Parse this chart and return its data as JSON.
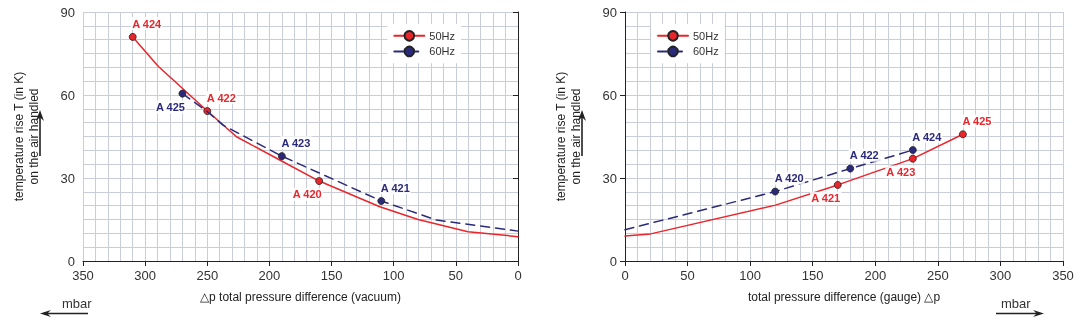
{
  "chart_data": [
    {
      "type": "line",
      "xlabel": "△p total pressure difference (vacuum)",
      "ylabel": "temperature rise T (in K)\non the air handled",
      "annotations": [
        "mbar"
      ],
      "xlim": [
        350,
        0
      ],
      "xticks": [
        350,
        300,
        250,
        200,
        150,
        100,
        50,
        0
      ],
      "ylim": [
        0,
        90
      ],
      "yticks": [
        0,
        30,
        60,
        90
      ],
      "grid": true,
      "legend": "top right",
      "series": [
        {
          "name": "50Hz",
          "color": "#e8262b",
          "line_style": "solid",
          "x": [
            310,
            289.5,
            250,
            226.5,
            191.7,
            160,
            111.2,
            80.4,
            40.2,
            0
          ],
          "values": [
            81,
            70.4,
            54.2,
            44.9,
            36.5,
            28.9,
            19.6,
            15,
            10.6,
            8.8
          ],
          "value_labels": [
            "A 424",
            null,
            "A 422",
            null,
            null,
            "A 420",
            null,
            null,
            null,
            null
          ]
        },
        {
          "name": "60Hz",
          "color": "#2b2a7a",
          "line_style": "dashed",
          "x": [
            270,
            250,
            237.3,
            190,
            110,
            65.6,
            0
          ],
          "values": [
            60.5,
            54,
            49.1,
            37.9,
            21.7,
            14.8,
            10.8
          ],
          "value_labels": [
            "A 425",
            null,
            null,
            "A 423",
            "A 421",
            null,
            null
          ]
        }
      ]
    },
    {
      "type": "line",
      "xlabel": "total pressure difference (gauge) △p",
      "ylabel": "temperature rise T (in K)\non the air handled",
      "annotations": [
        "mbar"
      ],
      "xlim": [
        0,
        350
      ],
      "xticks": [
        0,
        50,
        100,
        150,
        200,
        250,
        300,
        350
      ],
      "ylim": [
        0,
        90
      ],
      "yticks": [
        0,
        30,
        60,
        90
      ],
      "grid": true,
      "legend": "top left",
      "series": [
        {
          "name": "50Hz",
          "color": "#e8262b",
          "line_style": "solid",
          "x": [
            0,
            20.5,
            120.3,
            170,
            230,
            270
          ],
          "values": [
            9,
            9.8,
            20.2,
            27.5,
            37,
            45.8
          ],
          "value_labels": [
            null,
            null,
            null,
            "A 421",
            "A 423",
            "A 425"
          ]
        },
        {
          "name": "60Hz",
          "color": "#2b2a7a",
          "line_style": "dashed",
          "x": [
            0,
            120,
            180,
            230
          ],
          "values": [
            11.3,
            25.1,
            33.4,
            40.1
          ],
          "value_labels": [
            null,
            "A 420",
            "A 422",
            "A 424"
          ]
        }
      ]
    }
  ]
}
